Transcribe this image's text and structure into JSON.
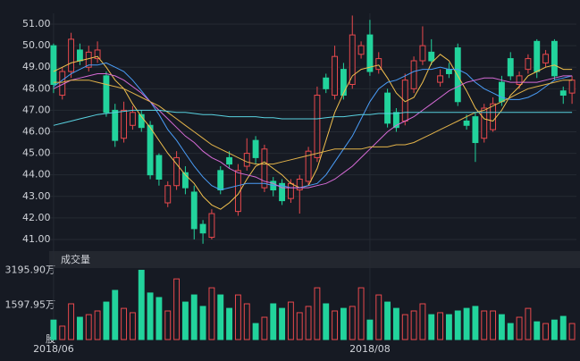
{
  "chart_data": {
    "type": "candlestick",
    "categories": [
      "2018/06",
      null,
      null,
      null,
      null,
      null,
      null,
      null,
      null,
      null,
      null,
      null,
      null,
      null,
      null,
      null,
      null,
      null,
      null,
      null,
      null,
      null,
      null,
      null,
      null,
      null,
      null,
      null,
      null,
      null,
      null,
      null,
      null,
      null,
      null,
      null,
      "2018/08",
      null,
      null,
      null,
      null,
      null,
      null,
      null,
      null,
      null,
      null,
      null,
      null,
      null,
      null,
      null,
      null,
      null,
      null,
      null,
      null,
      null,
      null,
      null
    ],
    "open": [
      50.0,
      47.7,
      48.8,
      49.8,
      49.0,
      49.4,
      48.6,
      47.0,
      45.7,
      46.3,
      46.8,
      46.3,
      44.9,
      42.7,
      43.5,
      44.1,
      43.2,
      41.7,
      41.1,
      44.2,
      44.8,
      42.3,
      44.4,
      45.6,
      43.4,
      43.7,
      43.6,
      42.9,
      43.3,
      43.7,
      44.8,
      48.5,
      47.7,
      48.9,
      48.2,
      49.6,
      50.5,
      48.9,
      47.8,
      46.9,
      46.5,
      48.0,
      49.3,
      49.7,
      48.3,
      48.9,
      49.9,
      46.5,
      46.7,
      45.7,
      46.1,
      48.3,
      49.4,
      48.2,
      48.9,
      50.2,
      49.2,
      50.2,
      47.9,
      47.8
    ],
    "close": [
      48.2,
      48.8,
      50.3,
      49.3,
      49.7,
      49.8,
      46.9,
      45.6,
      47.0,
      46.9,
      46.2,
      44.0,
      43.8,
      43.5,
      44.8,
      43.4,
      41.5,
      41.3,
      42.2,
      43.3,
      44.5,
      44.2,
      45.0,
      44.8,
      45.2,
      43.3,
      42.8,
      43.6,
      43.8,
      45.1,
      47.7,
      48.0,
      49.5,
      47.7,
      50.5,
      50.0,
      48.8,
      49.4,
      46.4,
      46.2,
      48.4,
      49.3,
      50.0,
      49.3,
      48.6,
      48.7,
      47.4,
      46.3,
      45.5,
      47.1,
      47.3,
      47.4,
      48.6,
      48.6,
      49.4,
      48.8,
      49.6,
      48.6,
      47.7,
      48.4
    ],
    "high": [
      50.1,
      49.0,
      50.6,
      50.1,
      50.0,
      50.2,
      48.8,
      47.3,
      47.4,
      47.2,
      47.0,
      46.5,
      45.0,
      43.7,
      45.1,
      44.4,
      43.5,
      41.9,
      42.4,
      44.4,
      45.1,
      44.5,
      45.7,
      45.8,
      45.4,
      43.9,
      43.8,
      43.8,
      44.0,
      45.3,
      48.1,
      48.7,
      50.0,
      49.2,
      51.4,
      50.2,
      51.2,
      49.7,
      48.0,
      47.1,
      48.7,
      49.5,
      50.9,
      50.3,
      48.9,
      49.2,
      50.1,
      46.8,
      46.9,
      47.3,
      47.6,
      48.6,
      49.7,
      48.8,
      49.6,
      50.3,
      49.8,
      50.3,
      48.1,
      48.6
    ],
    "low": [
      47.8,
      47.5,
      48.5,
      49.1,
      48.8,
      49.2,
      46.7,
      45.3,
      45.5,
      46.1,
      46.0,
      43.8,
      43.5,
      42.5,
      43.3,
      43.1,
      41.0,
      40.8,
      41.0,
      43.1,
      44.3,
      42.1,
      44.2,
      44.5,
      43.2,
      43.0,
      42.6,
      42.7,
      42.2,
      43.5,
      44.6,
      47.8,
      47.5,
      47.5,
      48.0,
      49.4,
      48.6,
      48.7,
      46.2,
      46.0,
      46.3,
      47.8,
      49.1,
      49.1,
      48.1,
      48.5,
      47.2,
      46.1,
      44.6,
      45.5,
      46.0,
      47.2,
      48.4,
      48.0,
      48.7,
      48.5,
      49.0,
      48.4,
      47.3,
      47.3
    ],
    "ylim": [
      40.5,
      51.5
    ],
    "yticks": [
      {
        "value": 41,
        "label": "41.00"
      },
      {
        "value": 42,
        "label": "42.00"
      },
      {
        "value": 43,
        "label": "43.00"
      },
      {
        "value": 44,
        "label": "44.00"
      },
      {
        "value": 45,
        "label": "45.00"
      },
      {
        "value": 46,
        "label": "46.00"
      },
      {
        "value": 47,
        "label": "47.00"
      },
      {
        "value": 48,
        "label": "48.00"
      },
      {
        "value": 49,
        "label": "49.00"
      },
      {
        "value": 50,
        "label": "50.00"
      },
      {
        "value": 51,
        "label": "51.00"
      }
    ],
    "grid": true,
    "up_color": "#e8494d",
    "down_color": "#22d39c",
    "series": [
      {
        "color": "#f2c14e",
        "values": [
          48.8,
          49.0,
          49.2,
          49.3,
          49.4,
          49.5,
          49.0,
          48.4,
          48.0,
          47.3,
          46.7,
          46.2,
          45.6,
          45.0,
          44.5,
          44.0,
          43.6,
          43.0,
          42.6,
          42.4,
          42.7,
          43.1,
          43.8,
          44.4,
          44.6,
          44.3,
          44.0,
          43.6,
          43.4,
          43.5,
          44.3,
          45.6,
          46.9,
          47.8,
          48.6,
          48.9,
          49.0,
          49.1,
          48.5,
          47.8,
          47.4,
          47.6,
          48.3,
          49.2,
          49.6,
          49.3,
          48.6,
          47.9,
          47.1,
          46.6,
          46.5,
          47.0,
          47.7,
          48.1,
          48.6,
          48.8,
          49.0,
          49.1,
          48.9,
          48.9
        ]
      },
      {
        "color": "#4a9df8",
        "values": [
          48.1,
          48.4,
          48.7,
          48.9,
          49.1,
          49.1,
          49.2,
          49.0,
          48.8,
          48.4,
          47.9,
          47.4,
          46.8,
          46.1,
          45.6,
          45.0,
          44.4,
          43.9,
          43.5,
          43.3,
          43.4,
          43.5,
          43.6,
          43.6,
          43.6,
          43.5,
          43.5,
          43.4,
          43.4,
          43.5,
          43.6,
          44.0,
          44.6,
          45.2,
          45.8,
          46.6,
          47.4,
          48.0,
          48.3,
          48.4,
          48.6,
          48.8,
          48.9,
          48.9,
          49.0,
          48.9,
          48.9,
          48.7,
          48.3,
          48.0,
          47.8,
          47.6,
          47.5,
          47.5,
          47.6,
          47.8,
          48.1,
          48.4,
          48.5,
          48.6
        ]
      },
      {
        "color": "#d66bd6",
        "values": [
          48.0,
          48.2,
          48.4,
          48.5,
          48.6,
          48.7,
          48.7,
          48.6,
          48.4,
          48.1,
          47.8,
          47.4,
          47.0,
          46.6,
          46.2,
          45.8,
          45.5,
          45.1,
          44.8,
          44.6,
          44.3,
          44.1,
          44.0,
          43.9,
          43.7,
          43.6,
          43.4,
          43.4,
          43.4,
          43.4,
          43.5,
          43.6,
          43.8,
          44.1,
          44.4,
          44.8,
          45.2,
          45.6,
          46.0,
          46.3,
          46.5,
          46.7,
          47.0,
          47.3,
          47.6,
          47.9,
          48.1,
          48.3,
          48.4,
          48.5,
          48.5,
          48.4,
          48.3,
          48.3,
          48.3,
          48.3,
          48.4,
          48.5,
          48.6,
          48.6
        ]
      },
      {
        "color": "#e3b34a",
        "values": [
          48.3,
          48.3,
          48.4,
          48.4,
          48.4,
          48.3,
          48.2,
          48.1,
          48.0,
          47.8,
          47.6,
          47.4,
          47.2,
          46.9,
          46.6,
          46.3,
          46.0,
          45.7,
          45.4,
          45.2,
          45.0,
          44.8,
          44.6,
          44.5,
          44.5,
          44.5,
          44.6,
          44.7,
          44.8,
          44.9,
          45.0,
          45.1,
          45.2,
          45.2,
          45.2,
          45.2,
          45.3,
          45.3,
          45.3,
          45.4,
          45.4,
          45.5,
          45.7,
          45.9,
          46.1,
          46.3,
          46.5,
          46.7,
          46.9,
          47.0,
          47.2,
          47.4,
          47.6,
          47.8,
          48.0,
          48.1,
          48.2,
          48.3,
          48.4,
          48.4
        ]
      },
      {
        "color": "#59d2e0",
        "values": [
          46.3,
          46.4,
          46.5,
          46.6,
          46.7,
          46.8,
          46.85,
          46.9,
          46.95,
          47.0,
          47.0,
          47.0,
          47.0,
          46.95,
          46.9,
          46.9,
          46.85,
          46.8,
          46.8,
          46.75,
          46.7,
          46.7,
          46.7,
          46.7,
          46.65,
          46.65,
          46.6,
          46.6,
          46.6,
          46.6,
          46.6,
          46.65,
          46.7,
          46.7,
          46.75,
          46.8,
          46.8,
          46.85,
          46.85,
          46.85,
          46.9,
          46.9,
          46.9,
          46.9,
          46.9,
          46.9,
          46.9,
          46.9,
          46.9,
          46.9,
          46.9,
          46.9,
          46.9,
          46.9,
          46.9,
          46.9,
          46.9,
          46.9,
          46.9,
          46.9
        ]
      }
    ],
    "volume": {
      "title": "成交量",
      "values": [
        900,
        620,
        1650,
        1030,
        1150,
        1320,
        1730,
        2270,
        1440,
        1240,
        3200,
        2150,
        1940,
        1320,
        2800,
        1730,
        2060,
        1530,
        2390,
        2060,
        1440,
        2060,
        1650,
        740,
        1030,
        1650,
        1440,
        1730,
        1240,
        1530,
        2390,
        1650,
        1320,
        1440,
        1530,
        2390,
        900,
        2060,
        1730,
        1440,
        1150,
        1320,
        1650,
        1150,
        1240,
        1150,
        1320,
        1440,
        1530,
        1320,
        1320,
        1150,
        740,
        1030,
        1440,
        820,
        740,
        900,
        1070,
        740
      ],
      "ylim": [
        0,
        3300
      ],
      "yticks": [
        {
          "value": 0,
          "label": "股"
        },
        {
          "value": 1597.95,
          "label": "1597.95万"
        },
        {
          "value": 3195.9,
          "label": "3195.90万"
        }
      ]
    }
  }
}
